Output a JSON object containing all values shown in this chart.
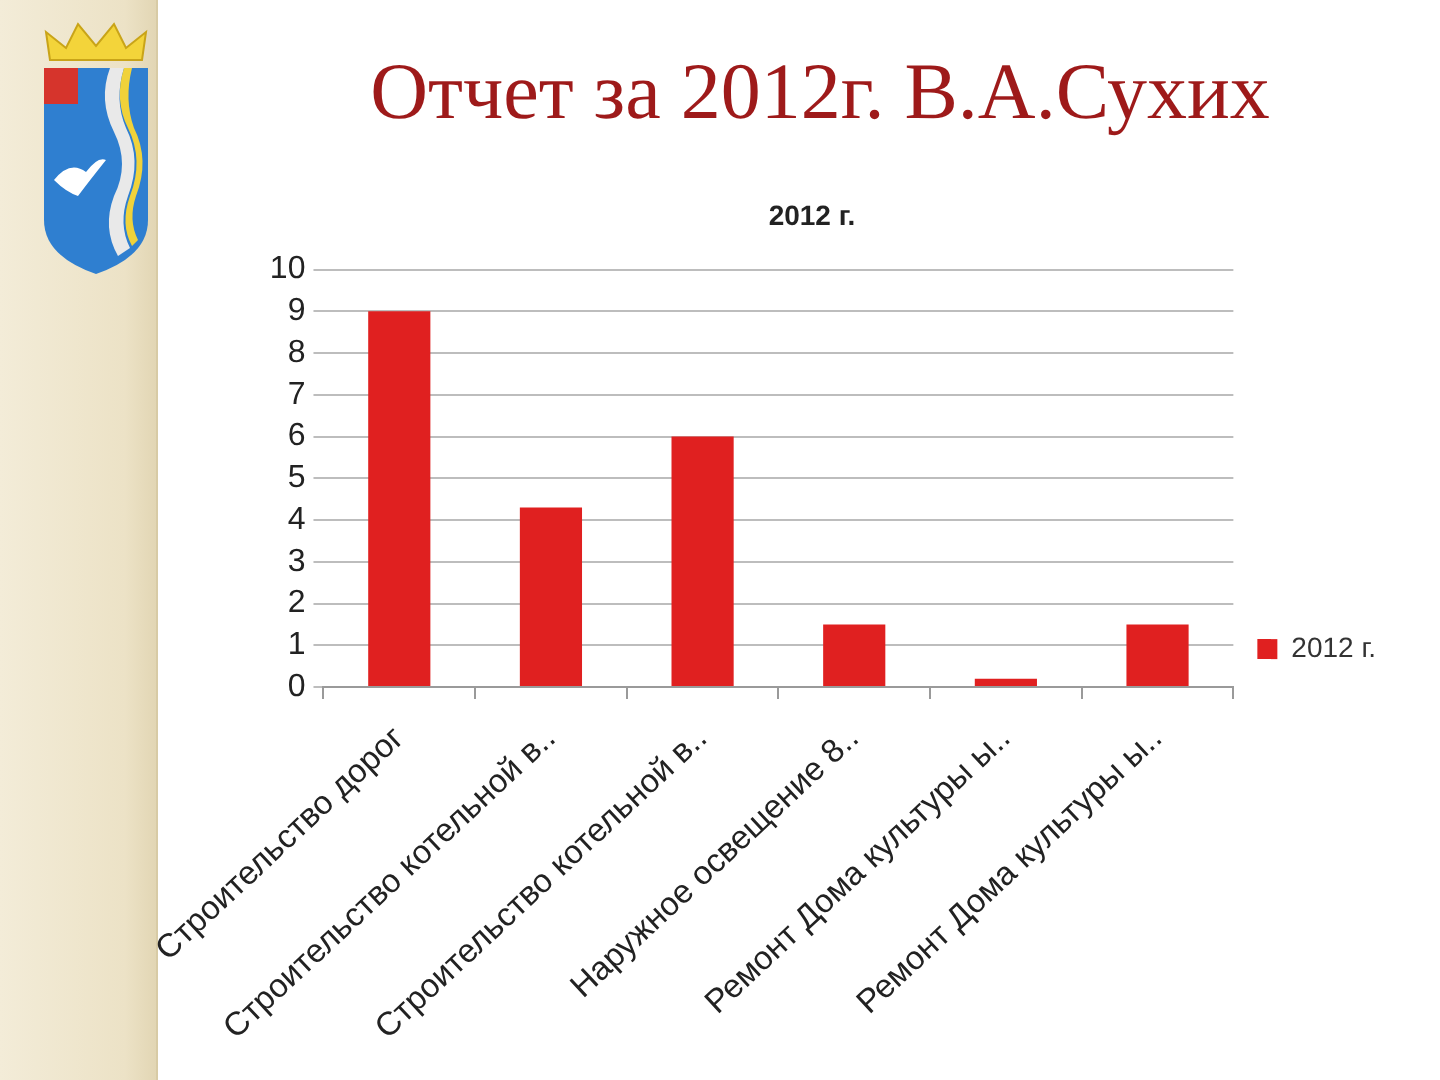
{
  "chart_data": {
    "type": "bar",
    "title": "Отчет за 2012г. В.А.Сухих",
    "subtitle": "2012 г.",
    "categories": [
      "Строительство дорог",
      "Строительство котельной в..",
      "Строительство котельной в..",
      "Наружное освещение 8..",
      "Ремонт Дома культуры ы..",
      "Ремонт Дома культуры ы.."
    ],
    "series": [
      {
        "name": "2012 г.",
        "color": "#e02020",
        "values": [
          9,
          4.3,
          6,
          1.5,
          0.2,
          1.5
        ]
      }
    ],
    "ylim": [
      0,
      10
    ],
    "yticks": [
      0,
      1,
      2,
      3,
      4,
      5,
      6,
      7,
      8,
      9,
      10
    ],
    "grid": "y",
    "legend": "right"
  }
}
